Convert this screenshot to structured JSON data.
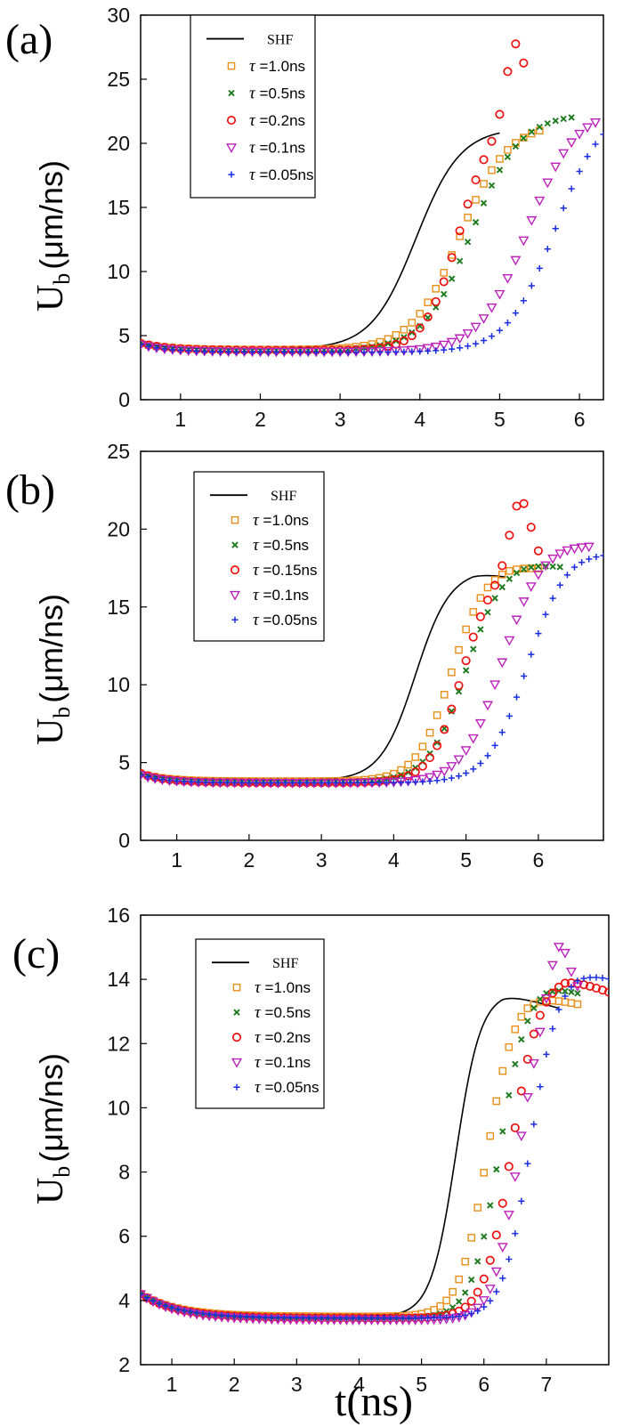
{
  "figure": {
    "xlabel": "t(ns)",
    "ylabel_main": "U",
    "ylabel_sub": "b",
    "ylabel_unit": "(μm/ns)"
  },
  "colors": {
    "SHF": "#000000",
    "tau_1_0": "#e8901a",
    "tau_0_5": "#1d7a1d",
    "tau_0_2": "#ee1111",
    "tau_0_1": "#bb22bb",
    "tau_0_05": "#1a2ee0"
  },
  "chart_data": [
    {
      "panel": "(a)",
      "type": "line",
      "xlim": [
        0.5,
        6.3
      ],
      "ylim": [
        0,
        30
      ],
      "xticks": [
        1,
        2,
        3,
        4,
        5,
        6
      ],
      "yticks": [
        0,
        5,
        10,
        15,
        20,
        25,
        30
      ],
      "legend_position": "top-left",
      "series": [
        {
          "name": "SHF",
          "key": "SHF",
          "marker": "line",
          "t0": 0.5,
          "t_end": 5.0,
          "base": 4.4,
          "base_end": 3.95,
          "fall_rate": 0.35,
          "peak": 21.2,
          "tc": 3.95,
          "w": 0.28,
          "bump": 0,
          "bc": 5.0,
          "bw": 0.3,
          "decline_rate": 0,
          "decline_start": 6.5
        },
        {
          "name": "=1.0ns",
          "tau": "τ",
          "key": "tau_1_0",
          "marker": "square",
          "t0": 0.5,
          "t_end": 5.55,
          "base": 4.4,
          "base_end": 3.9,
          "fall_rate": 0.35,
          "peak": 21.6,
          "tc": 4.5,
          "w": 0.3,
          "bump": 0,
          "bc": 5.5,
          "bw": 0.3,
          "decline_rate": 0,
          "decline_start": 6.5
        },
        {
          "name": "=0.5ns",
          "tau": "τ",
          "key": "tau_0_5",
          "marker": "x",
          "t0": 0.5,
          "t_end": 5.9,
          "base": 4.4,
          "base_end": 3.85,
          "fall_rate": 0.35,
          "peak": 22.3,
          "tc": 4.65,
          "w": 0.3,
          "bump": 0,
          "bc": 5.5,
          "bw": 0.3,
          "decline_rate": 0,
          "decline_start": 6.5
        },
        {
          "name": "=0.2ns",
          "tau": "τ",
          "key": "tau_0_2",
          "marker": "circle",
          "t0": 0.5,
          "t_end": 5.35,
          "base": 4.4,
          "base_end": 3.85,
          "fall_rate": 0.35,
          "peak": 22.5,
          "tc": 4.5,
          "w": 0.22,
          "bump": 6.0,
          "bc": 5.2,
          "bw": 0.17,
          "decline_rate": 0,
          "decline_start": 6.5
        },
        {
          "name": "=0.1ns",
          "tau": "τ",
          "key": "tau_0_1",
          "marker": "triangle",
          "t0": 0.5,
          "t_end": 6.2,
          "base": 4.3,
          "base_end": 3.75,
          "fall_rate": 0.35,
          "peak": 22.7,
          "tc": 5.35,
          "w": 0.3,
          "bump": 0,
          "bc": 6.0,
          "bw": 0.3,
          "decline_rate": 0,
          "decline_start": 6.5
        },
        {
          "name": "=0.05ns",
          "tau": "τ",
          "key": "tau_0_05",
          "marker": "plus",
          "t0": 0.5,
          "t_end": 6.3,
          "base": 4.3,
          "base_end": 3.7,
          "fall_rate": 0.35,
          "peak": 23.0,
          "tc": 5.7,
          "w": 0.3,
          "bump": 0,
          "bc": 6.0,
          "bw": 0.3,
          "decline_rate": 0,
          "decline_start": 6.5
        }
      ]
    },
    {
      "panel": "(b)",
      "type": "line",
      "xlim": [
        0.5,
        6.9
      ],
      "ylim": [
        0,
        25
      ],
      "xticks": [
        1,
        2,
        3,
        4,
        5,
        6
      ],
      "yticks": [
        0,
        5,
        10,
        15,
        20,
        25
      ],
      "legend_position": "top-left",
      "series": [
        {
          "name": "SHF",
          "key": "SHF",
          "marker": "line",
          "t0": 0.5,
          "t_end": 5.55,
          "base": 4.3,
          "base_end": 3.85,
          "fall_rate": 0.35,
          "peak": 17.4,
          "tc": 4.3,
          "w": 0.24,
          "bump": 0,
          "bc": 5.5,
          "bw": 0.3,
          "decline_rate": 0.9,
          "decline_start": 5.1
        },
        {
          "name": "=1.0ns",
          "tau": "τ",
          "key": "tau_1_0",
          "marker": "square",
          "t0": 0.5,
          "t_end": 6.05,
          "base": 4.3,
          "base_end": 3.8,
          "fall_rate": 0.35,
          "peak": 17.8,
          "tc": 4.8,
          "w": 0.24,
          "bump": 0,
          "bc": 5.5,
          "bw": 0.3,
          "decline_rate": 0.6,
          "decline_start": 5.6
        },
        {
          "name": "=0.5ns",
          "tau": "τ",
          "key": "tau_0_5",
          "marker": "x",
          "t0": 0.5,
          "t_end": 6.3,
          "base": 4.3,
          "base_end": 3.75,
          "fall_rate": 0.35,
          "peak": 18.1,
          "tc": 5.0,
          "w": 0.26,
          "bump": 0,
          "bc": 5.5,
          "bw": 0.3,
          "decline_rate": 0.8,
          "decline_start": 5.75
        },
        {
          "name": "=0.15ns",
          "tau": "τ",
          "key": "tau_0_2",
          "marker": "circle",
          "t0": 0.5,
          "t_end": 6.05,
          "base": 4.3,
          "base_end": 3.7,
          "fall_rate": 0.35,
          "peak": 17.8,
          "tc": 4.95,
          "w": 0.22,
          "bump": 4.4,
          "bc": 5.75,
          "bw": 0.2,
          "decline_rate": 0,
          "decline_start": 6.5
        },
        {
          "name": "=0.1ns",
          "tau": "τ",
          "key": "tau_0_1",
          "marker": "triangle",
          "t0": 0.5,
          "t_end": 6.75,
          "base": 4.2,
          "base_end": 3.7,
          "fall_rate": 0.35,
          "peak": 19.2,
          "tc": 5.5,
          "w": 0.27,
          "bump": 0,
          "bc": 6.0,
          "bw": 0.3,
          "decline_rate": 0.4,
          "decline_start": 6.35
        },
        {
          "name": "=0.05ns",
          "tau": "τ",
          "key": "tau_0_05",
          "marker": "plus",
          "t0": 0.5,
          "t_end": 6.9,
          "base": 4.2,
          "base_end": 3.7,
          "fall_rate": 0.35,
          "peak": 18.8,
          "tc": 5.85,
          "w": 0.27,
          "bump": 0,
          "bc": 6.0,
          "bw": 0.3,
          "decline_rate": 0.5,
          "decline_start": 6.5
        }
      ]
    },
    {
      "panel": "(c)",
      "type": "line",
      "xlim": [
        0.5,
        8.0
      ],
      "ylim": [
        2,
        16
      ],
      "xticks": [
        1,
        2,
        3,
        4,
        5,
        6,
        7
      ],
      "yticks": [
        2,
        4,
        6,
        8,
        10,
        12,
        14,
        16
      ],
      "legend_position": "top-left",
      "series": [
        {
          "name": "SHF",
          "key": "SHF",
          "marker": "line",
          "t0": 0.5,
          "t_end": 7.2,
          "base": 4.2,
          "base_end": 3.5,
          "fall_rate": 0.6,
          "peak": 13.6,
          "tc": 5.55,
          "w": 0.2,
          "bump": 0,
          "bc": 6.5,
          "bw": 0.3,
          "decline_rate": 0.55,
          "decline_start": 6.3
        },
        {
          "name": "=1.0ns",
          "tau": "τ",
          "key": "tau_1_0",
          "marker": "square",
          "t0": 0.5,
          "t_end": 7.55,
          "base": 4.2,
          "base_end": 3.5,
          "fall_rate": 0.6,
          "peak": 13.6,
          "tc": 6.05,
          "w": 0.22,
          "bump": 0,
          "bc": 6.5,
          "bw": 0.3,
          "decline_rate": 0.45,
          "decline_start": 6.7
        },
        {
          "name": "=0.5ns",
          "tau": "τ",
          "key": "tau_0_5",
          "marker": "x",
          "t0": 0.5,
          "t_end": 7.55,
          "base": 4.2,
          "base_end": 3.45,
          "fall_rate": 0.6,
          "peak": 13.9,
          "tc": 6.25,
          "w": 0.22,
          "bump": 0,
          "bc": 6.5,
          "bw": 0.3,
          "decline_rate": 0.6,
          "decline_start": 7.0
        },
        {
          "name": "=0.2ns",
          "tau": "τ",
          "key": "tau_0_2",
          "marker": "circle",
          "t0": 0.5,
          "t_end": 8.0,
          "base": 4.2,
          "base_end": 3.45,
          "fall_rate": 0.6,
          "peak": 14.1,
          "tc": 6.45,
          "w": 0.22,
          "bump": 0,
          "bc": 6.5,
          "bw": 0.3,
          "decline_rate": 0.7,
          "decline_start": 7.3
        },
        {
          "name": "=0.1ns",
          "tau": "τ",
          "key": "tau_0_1",
          "marker": "triangle",
          "t0": 0.5,
          "t_end": 7.55,
          "base": 4.2,
          "base_end": 3.4,
          "fall_rate": 0.6,
          "peak": 13.6,
          "tc": 6.55,
          "w": 0.2,
          "bump": 1.8,
          "bc": 7.2,
          "bw": 0.22,
          "decline_rate": 0,
          "decline_start": 8.5
        },
        {
          "name": "=0.05ns",
          "tau": "τ",
          "key": "tau_0_05",
          "marker": "plus",
          "t0": 0.5,
          "t_end": 8.0,
          "base": 4.2,
          "base_end": 3.45,
          "fall_rate": 0.6,
          "peak": 14.3,
          "tc": 6.75,
          "w": 0.22,
          "bump": 0,
          "bc": 7.3,
          "bw": 0.3,
          "decline_rate": 0.5,
          "decline_start": 7.5
        }
      ]
    }
  ]
}
